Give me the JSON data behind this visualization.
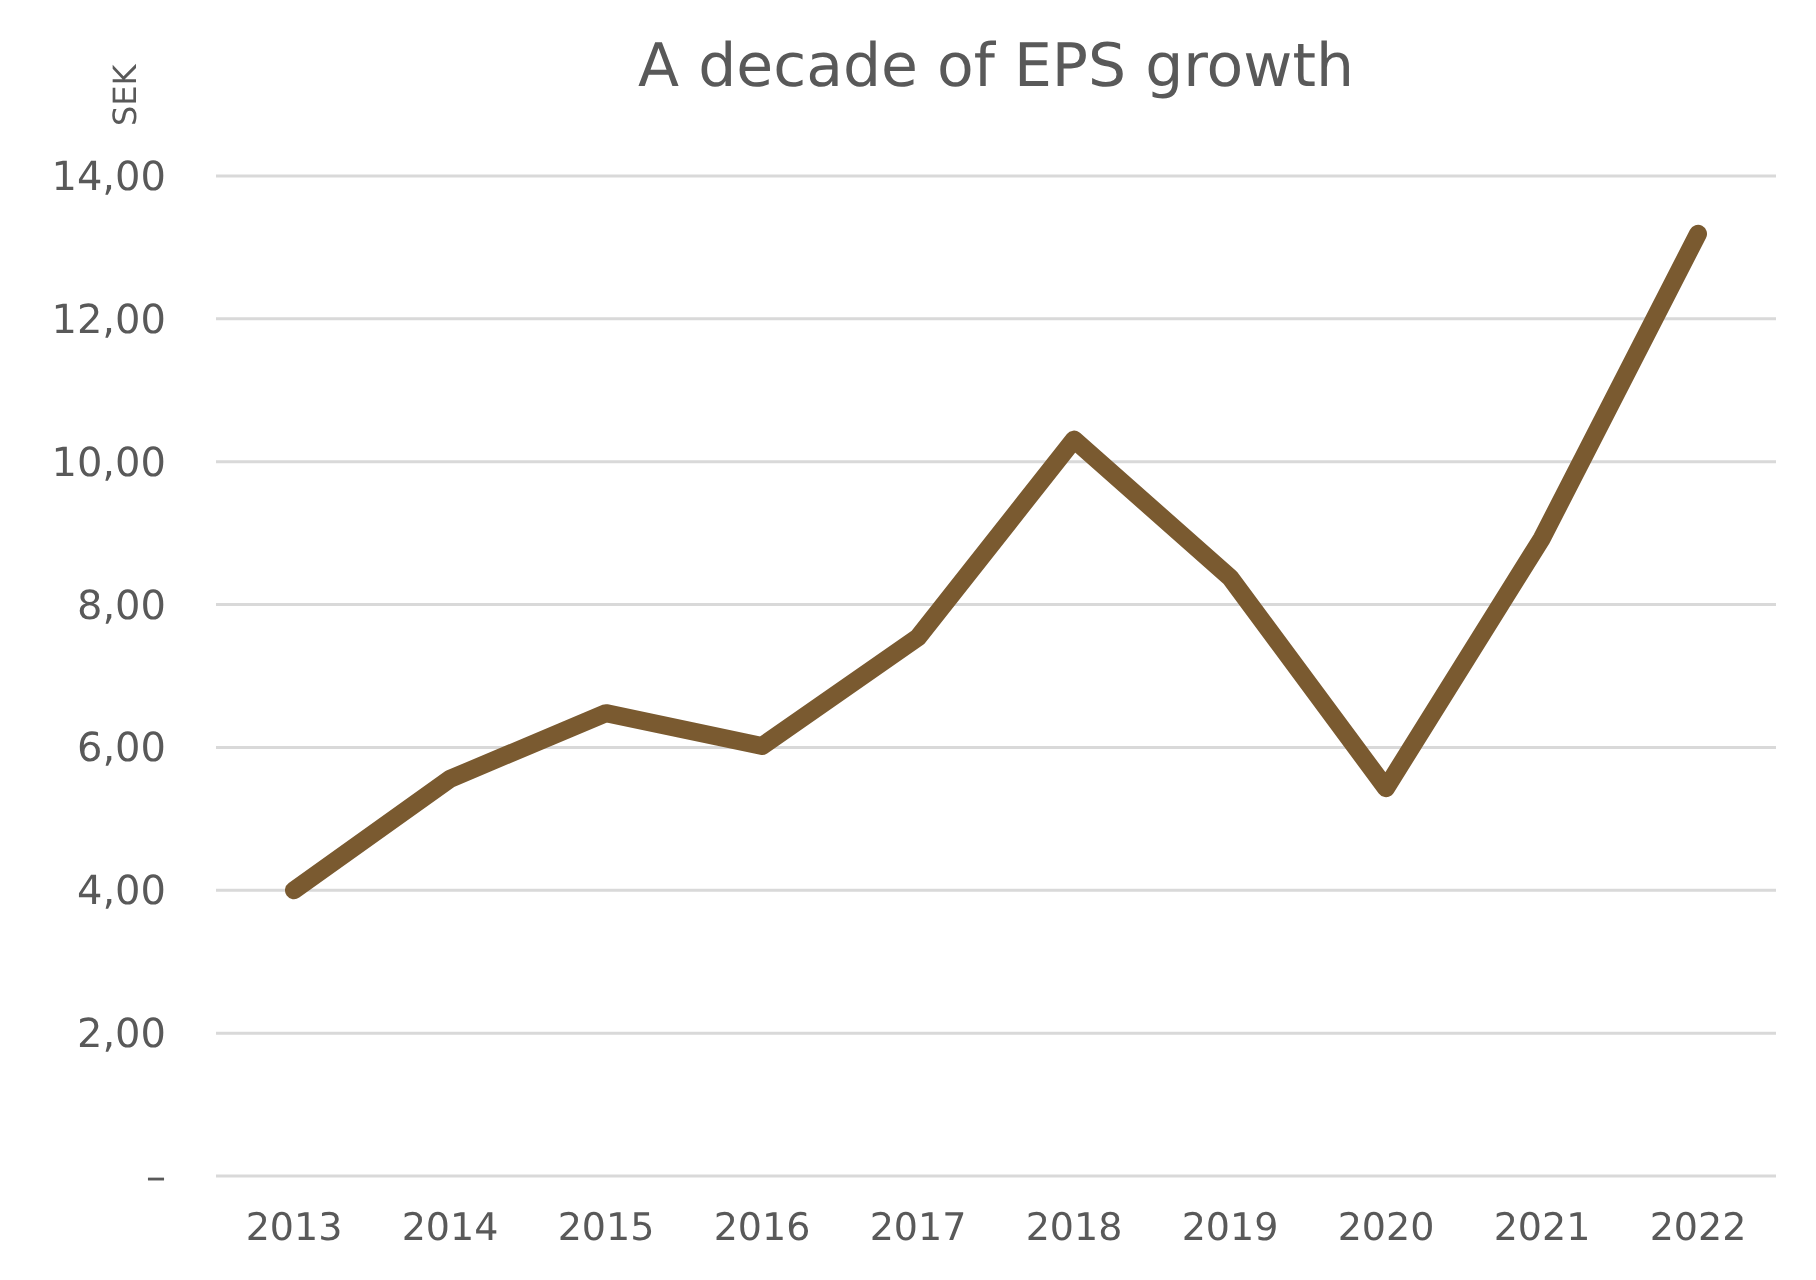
{
  "chart_data": {
    "type": "line",
    "title": "A decade of EPS growth",
    "ylabel": "SEK",
    "categories": [
      "2013",
      "2014",
      "2015",
      "2016",
      "2017",
      "2018",
      "2019",
      "2020",
      "2021",
      "2022"
    ],
    "series": [
      {
        "color": "#7a5a30",
        "values": [
          4.0,
          5.56,
          6.48,
          6.02,
          7.54,
          10.31,
          8.38,
          5.43,
          8.93,
          13.19
        ]
      }
    ],
    "ylim": [
      0,
      14
    ],
    "yticks": [
      {
        "value": 0,
        "label": "–"
      },
      {
        "value": 2,
        "label": "2,00"
      },
      {
        "value": 4,
        "label": "4,00"
      },
      {
        "value": 6,
        "label": "6,00"
      },
      {
        "value": 8,
        "label": "8,00"
      },
      {
        "value": 10,
        "label": "10,00"
      },
      {
        "value": 12,
        "label": "12,00"
      },
      {
        "value": 14,
        "label": "14,00"
      }
    ],
    "grid": "y",
    "marker": "none",
    "line_style": "solid"
  }
}
